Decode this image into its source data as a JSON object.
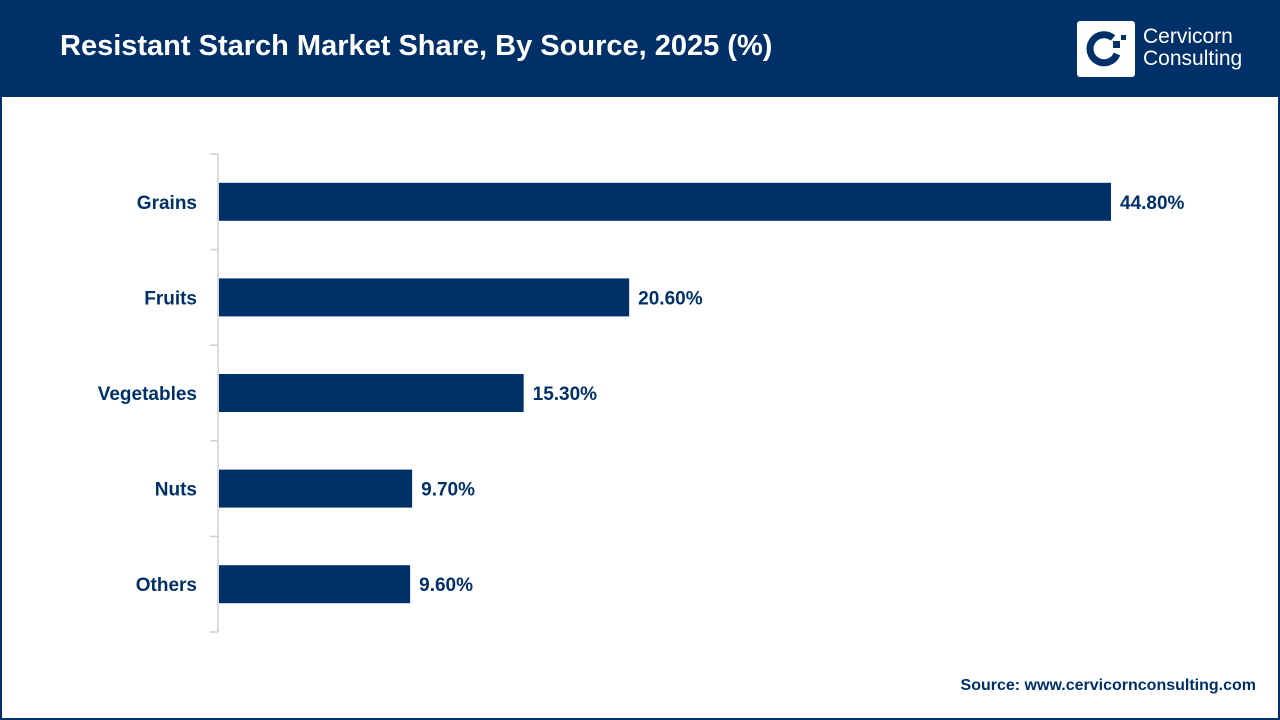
{
  "header": {
    "title": "Resistant Starch Market Share, By Source, 2025 (%)"
  },
  "logo": {
    "line1": "Cervicorn",
    "line2": "Consulting"
  },
  "source": "Source: www.cervicornconsulting.com",
  "colors": {
    "bar": "#003068",
    "header": "#003068",
    "label": "#003068"
  },
  "chart_data": {
    "type": "bar",
    "orientation": "horizontal",
    "categories": [
      "Grains",
      "Fruits",
      "Vegetables",
      "Nuts",
      "Others"
    ],
    "values": [
      44.8,
      20.6,
      15.3,
      9.7,
      9.6
    ],
    "data_labels": [
      "44.80%",
      "20.60%",
      "15.30%",
      "9.70%",
      "9.60%"
    ],
    "title": "Resistant Starch Market Share, By Source, 2025 (%)",
    "xlabel": "",
    "ylabel": "",
    "grid": false
  }
}
